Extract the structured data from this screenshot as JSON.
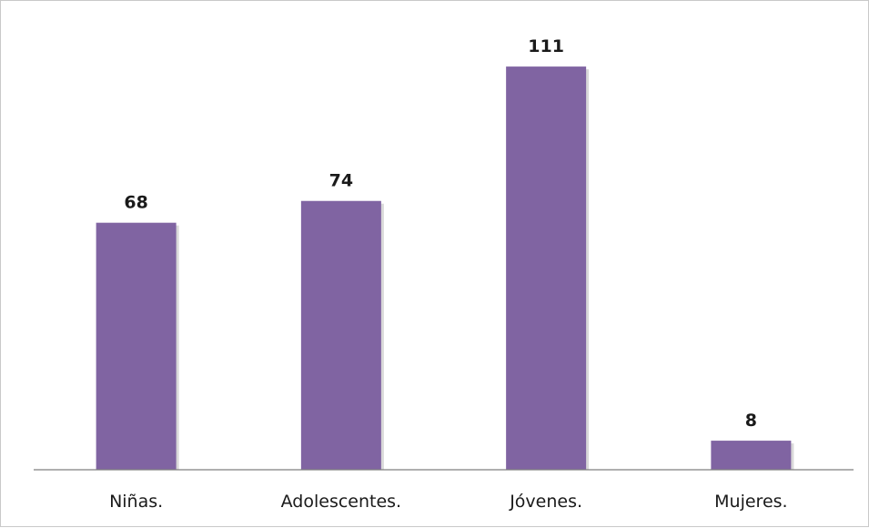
{
  "chart_data": {
    "type": "bar",
    "title": "",
    "xlabel": "",
    "ylabel": "",
    "categories": [
      "Niñas.",
      "Adolescentes.",
      "Jóvenes.",
      "Mujeres."
    ],
    "values": [
      68,
      74,
      111,
      8
    ],
    "data_labels": [
      "68",
      "74",
      "111",
      "8"
    ],
    "ylim": [
      0,
      120
    ],
    "grid": false,
    "legend": "none",
    "colors": {
      "bar": "#8064a2"
    }
  }
}
